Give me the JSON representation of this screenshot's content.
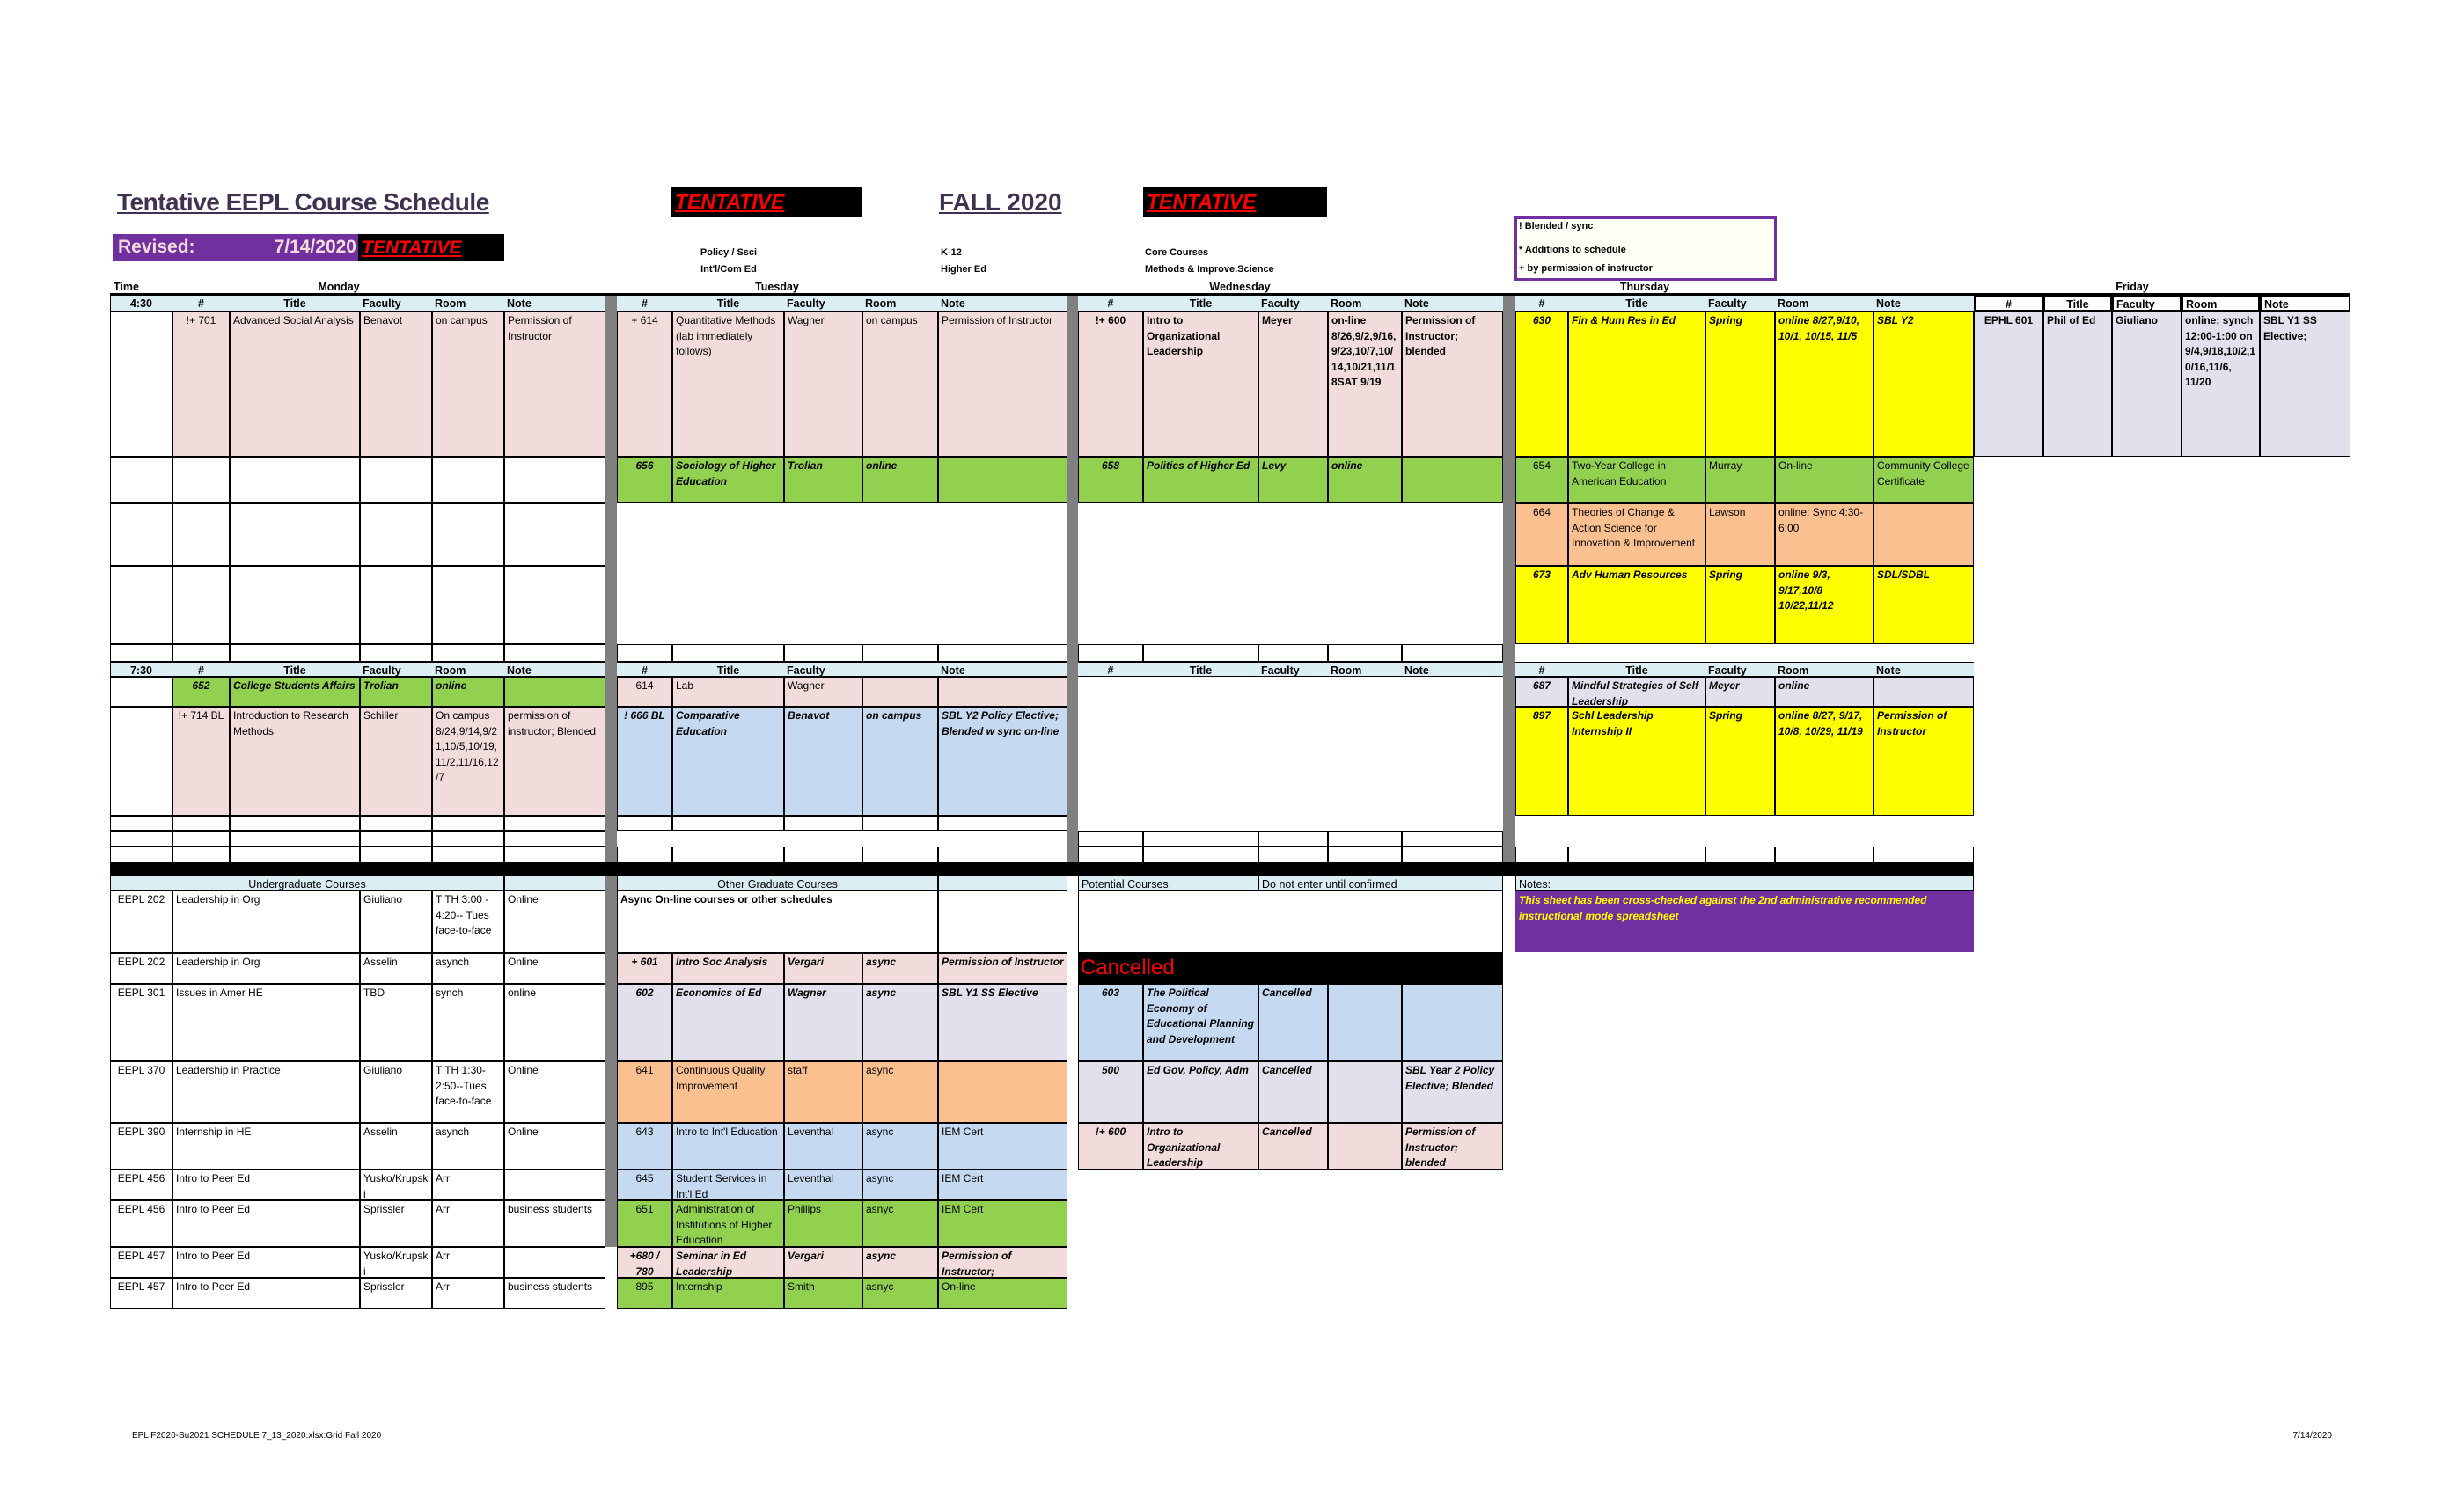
{
  "header": {
    "title": "Tentative EEPL Course Schedule",
    "tentative_label": "TENTATIVE",
    "term": "FALL 2020",
    "revised_label": "Revised:",
    "revised_date": "7/14/2020"
  },
  "legend": [
    {
      "label": "Policy / Ssci",
      "color": "#e4dfec"
    },
    {
      "label": "Int'l/Com Ed",
      "color": "#c5d9f1"
    },
    {
      "label": "K-12",
      "color": "#ffff00"
    },
    {
      "label": "Higher Ed",
      "color": "#92d050"
    },
    {
      "label": "Core Courses",
      "color": "#f2dcdb"
    },
    {
      "label": "Methods & Improve.Science",
      "color": "#fac090"
    }
  ],
  "key_box": [
    "! Blended / sync",
    "* Additions to schedule",
    "+ by permission of instructor"
  ],
  "time_label": "Time",
  "days": [
    "Monday",
    "Tuesday",
    "Wednesday",
    "Thursday",
    "Friday"
  ],
  "colors": {
    "header_bg": "#daeef3",
    "accent_purple": "#7030a0",
    "tentative_red": "#ff0000",
    "divider_gray": "#808080"
  },
  "slots": [
    {
      "time": "4:30",
      "days": {
        "monday": {
          "header": [
            "#",
            "Title",
            "Faculty",
            "Room",
            "Note"
          ],
          "rows": [
            {
              "fill": "#f2dcdb",
              "style": "normal",
              "cells": [
                "!+ 701",
                "Advanced Social Analysis",
                "Benavot",
                "on campus",
                "Permission of Instructor"
              ]
            },
            {
              "fill": "#ffffff",
              "style": "normal",
              "cells": [
                "",
                "",
                "",
                "",
                ""
              ]
            },
            {
              "fill": "#ffffff",
              "style": "normal",
              "cells": [
                "",
                "",
                "",
                "",
                ""
              ]
            },
            {
              "fill": "#ffffff",
              "style": "normal",
              "cells": [
                "",
                "",
                "",
                "",
                ""
              ]
            },
            {
              "fill": "#ffffff",
              "style": "normal",
              "cells": [
                "",
                "",
                "",
                "",
                ""
              ]
            }
          ]
        },
        "tuesday": {
          "header": [
            "#",
            "Title",
            "Faculty",
            "Room",
            "Note"
          ],
          "rows": [
            {
              "fill": "#f2dcdb",
              "style": "normal",
              "cells": [
                "+ 614",
                "Quantitative Methods (lab immediately follows)",
                "Wagner",
                "on campus",
                "Permission of Instructor"
              ]
            },
            {
              "fill": "#92d050",
              "style": "bi",
              "cells": [
                "656",
                "Sociology of Higher Education",
                "Trolian",
                "online",
                ""
              ]
            },
            null,
            null,
            {
              "fill": "#ffffff",
              "style": "normal",
              "cells": [
                "",
                "",
                "",
                "",
                ""
              ]
            }
          ]
        },
        "wednesday": {
          "header": [
            "#",
            "Title",
            "Faculty",
            "Room",
            "Note"
          ],
          "rows": [
            {
              "fill": "#f2dcdb",
              "style": "bold",
              "cells": [
                "!+ 600",
                "Intro to Organizational Leadership",
                "Meyer",
                "on-line 8/26,9/2,9/16,9/23,10/7,10/14,10/21,11/18SAT 9/19",
                "Permission of Instructor; blended"
              ]
            },
            {
              "fill": "#92d050",
              "style": "bi",
              "cells": [
                "658",
                "Politics of Higher Ed",
                "Levy",
                "online",
                ""
              ]
            },
            null,
            null,
            {
              "fill": "#ffffff",
              "style": "normal",
              "cells": [
                "",
                "",
                "",
                "",
                ""
              ]
            }
          ]
        },
        "thursday": {
          "header": [
            "#",
            "Title",
            "Faculty",
            "Room",
            "Note"
          ],
          "rows": [
            {
              "fill": "#ffff00",
              "style": "bi",
              "cells": [
                "630",
                "Fin & Hum Res in Ed",
                "Spring",
                "online 8/27,9/10, 10/1, 10/15, 11/5",
                "SBL Y2"
              ]
            },
            {
              "fill": "#92d050",
              "style": "normal",
              "cells": [
                "654",
                "Two-Year College in American Education",
                "Murray",
                "On-line",
                "Community College Certificate"
              ]
            },
            {
              "fill": "#fac090",
              "style": "normal",
              "cells": [
                "664",
                "Theories of Change & Action Science for Innovation & Improvement",
                "Lawson",
                "online: Sync 4:30-6:00",
                ""
              ]
            },
            {
              "fill": "#ffff00",
              "style": "bi",
              "cells": [
                "673",
                "Adv Human Resources",
                "Spring",
                "online 9/3, 9/17,10/8 10/22,11/12",
                "SDL/SDBL"
              ]
            },
            null
          ]
        },
        "friday": {
          "header": [
            "#",
            "Title",
            "Faculty",
            "Room",
            "Note"
          ],
          "rows": [
            {
              "fill": "#e4dfec",
              "style": "bold",
              "cells": [
                "EPHL 601",
                "Phil of Ed",
                "Giuliano",
                "online; synch 12:00-1:00 on 9/4,9/18,10/2,10/16,11/6, 11/20",
                "SBL Y1 SS Elective;"
              ]
            },
            null,
            null,
            null,
            null
          ]
        }
      }
    },
    {
      "time": "7:30",
      "days": {
        "monday": {
          "header": [
            "#",
            "Title",
            "Faculty",
            "Room",
            "Note"
          ],
          "rows": [
            {
              "fill": "#92d050",
              "style": "bi",
              "cells": [
                "652",
                "College Students Affairs",
                "Trolian",
                "online",
                ""
              ]
            },
            {
              "fill": "#f2dcdb",
              "style": "normal",
              "cells": [
                "!+ 714 BL",
                "Introduction to Research Methods",
                "Schiller",
                "On campus 8/24,9/14,9/21,10/5,10/19,11/2,11/16,12/7",
                "permission of instructor; Blended"
              ]
            },
            {
              "fill": "#ffffff",
              "style": "normal",
              "cells": [
                "",
                "",
                "",
                "",
                ""
              ]
            },
            {
              "fill": "#ffffff",
              "style": "normal",
              "cells": [
                "",
                "",
                "",
                "",
                ""
              ]
            },
            {
              "fill": "#ffffff",
              "style": "normal",
              "cells": [
                "",
                "",
                "",
                "",
                ""
              ]
            }
          ]
        },
        "tuesday": {
          "header": [
            "#",
            "Title",
            "Faculty",
            "",
            "Note"
          ],
          "rows": [
            {
              "fill": "#f2dcdb",
              "style": "normal",
              "cells": [
                "614",
                "Lab",
                "Wagner",
                "",
                ""
              ]
            },
            {
              "fill": "#c5d9f1",
              "style": "bi",
              "cells": [
                "! 666 BL",
                "Comparative Education",
                "Benavot",
                "on campus",
                "SBL Y2 Policy Elective; Blended w sync on-line"
              ]
            },
            {
              "fill": "#ffffff",
              "style": "normal",
              "cells": [
                "",
                "",
                "",
                "",
                ""
              ]
            },
            null,
            {
              "fill": "#ffffff",
              "style": "normal",
              "cells": [
                "",
                "",
                "",
                "",
                ""
              ]
            }
          ]
        },
        "wednesday": {
          "header": [
            "#",
            "Title",
            "Faculty",
            "Room",
            "Note"
          ],
          "rows": [
            null,
            null,
            null,
            {
              "fill": "#ffffff",
              "style": "normal",
              "cells": [
                "",
                "",
                "",
                "",
                ""
              ]
            },
            {
              "fill": "#ffffff",
              "style": "normal",
              "cells": [
                "",
                "",
                "",
                "",
                ""
              ]
            }
          ]
        },
        "thursday": {
          "header": [
            "#",
            "Title",
            "Faculty",
            "Room",
            "Note"
          ],
          "rows": [
            {
              "fill": "#e4dfec",
              "style": "bi",
              "cells": [
                "687",
                "Mindful Strategies of Self Leadership",
                "Meyer",
                "online",
                ""
              ]
            },
            {
              "fill": "#ffff00",
              "style": "bi",
              "cells": [
                "897",
                "Schl Leadership Internship II",
                "Spring",
                "online 8/27, 9/17, 10/8, 10/29, 11/19",
                "Permission of Instructor"
              ]
            },
            null,
            null,
            {
              "fill": "#ffffff",
              "style": "normal",
              "cells": [
                "",
                "",
                "",
                "",
                ""
              ]
            }
          ]
        }
      }
    }
  ],
  "undergraduate": {
    "heading": "Undergraduate Courses",
    "rows": [
      {
        "fill": "#ffffff",
        "style": "normal",
        "cells": [
          "EEPL 202",
          "Leadership in Org",
          "Giuliano",
          "T TH 3:00 - 4:20-- Tues face-to-face",
          "Online"
        ]
      },
      {
        "fill": "#ffffff",
        "style": "normal",
        "cells": [
          "EEPL 202",
          "Leadership in Org",
          "Asselin",
          "asynch",
          "Online"
        ]
      },
      {
        "fill": "#ffffff",
        "style": "normal",
        "cells": [
          "EEPL 301",
          "Issues in Amer HE",
          "TBD",
          "synch",
          "online"
        ]
      },
      {
        "fill": "#ffffff",
        "style": "normal",
        "cells": [
          "EEPL 370",
          "Leadership in Practice",
          "Giuliano",
          "T TH 1:30-2:50--Tues face-to-face",
          "Online"
        ]
      },
      {
        "fill": "#ffffff",
        "style": "normal",
        "cells": [
          "EEPL 390",
          "Internship in HE",
          "Asselin",
          "asynch",
          "Online"
        ]
      },
      {
        "fill": "#ffffff",
        "style": "normal",
        "cells": [
          "EEPL 456",
          "Intro to Peer  Ed",
          "Yusko/Krupski",
          "Arr",
          ""
        ]
      },
      {
        "fill": "#ffffff",
        "style": "normal",
        "cells": [
          "EEPL 456",
          "Intro to Peer Ed",
          "Sprissler",
          "Arr",
          "business students"
        ]
      },
      {
        "fill": "#ffffff",
        "style": "normal",
        "cells": [
          "EEPL 457",
          "Intro to Peer Ed",
          "Yusko/Krupski",
          "Arr",
          ""
        ]
      },
      {
        "fill": "#ffffff",
        "style": "normal",
        "cells": [
          "EEPL 457",
          "Intro to Peer Ed",
          "Sprissler",
          "Arr",
          "business students"
        ]
      }
    ]
  },
  "other_graduate": {
    "heading": "Other Graduate Courses",
    "async_heading": "Async On-line courses or other schedules",
    "rows": [
      {
        "fill": "#f2dcdb",
        "style": "bi",
        "cells": [
          "+ 601",
          "Intro Soc Analysis",
          "Vergari",
          "async",
          "Permission of Instructor"
        ]
      },
      {
        "fill": "#e4dfec",
        "style": "bi",
        "cells": [
          "602",
          "Economics of Ed",
          "Wagner",
          "async",
          "SBL Y1 SS Elective"
        ]
      },
      {
        "fill": "#fac090",
        "style": "normal",
        "cells": [
          "641",
          "Continuous Quality Improvement",
          "staff",
          "async",
          ""
        ]
      },
      {
        "fill": "#c5d9f1",
        "style": "normal",
        "cells": [
          "643",
          "Intro to Int'l Education",
          "Leventhal",
          "async",
          "IEM Cert"
        ]
      },
      {
        "fill": "#c5d9f1",
        "style": "normal",
        "cells": [
          "645",
          "Student Services in Int'l Ed",
          "Leventhal",
          "async",
          "IEM Cert"
        ]
      },
      {
        "fill": "#92d050",
        "style": "normal",
        "cells": [
          "651",
          "Administration of Institutions of Higher Education",
          "Phillips",
          "asnyc",
          "IEM Cert"
        ]
      },
      {
        "fill": "#f2dcdb",
        "style": "bi",
        "cells": [
          "+680 / 780",
          "Seminar in Ed Leadership",
          "Vergari",
          "async",
          "Permission of Instructor;"
        ]
      },
      {
        "fill": "#92d050",
        "style": "normal",
        "cells": [
          "895",
          "Internship",
          "Smith",
          "asnyc",
          "On-line"
        ]
      }
    ]
  },
  "potential": {
    "heading": "Potential Courses",
    "subheading": "Do not enter until confirmed",
    "cancelled_label": "Cancelled",
    "rows": [
      {
        "fill": "#c5d9f1",
        "style": "bi",
        "cells": [
          "603",
          "The Political Economy of Educational Planning and Development",
          "Cancelled",
          "",
          ""
        ]
      },
      {
        "fill": "#e4dfec",
        "style": "bi",
        "cells": [
          "500",
          "Ed Gov, Policy, Adm",
          "Cancelled",
          "",
          "SBL Year 2 Policy Elective; Blended"
        ]
      },
      {
        "fill": "#f2dcdb",
        "style": "bi",
        "cells": [
          "!+ 600",
          "Intro to Organizational Leadership",
          "Cancelled",
          "",
          "Permission of Instructor; blended"
        ]
      }
    ]
  },
  "notes": {
    "heading": "Notes:",
    "text": "This sheet has been cross-checked against the 2nd administrative recommended instructional mode spreadsheet"
  },
  "footer": {
    "file": "EPL F2020-Su2021 SCHEDULE 7_13_2020.xlsx:Grid Fall 2020",
    "date": "7/14/2020"
  }
}
